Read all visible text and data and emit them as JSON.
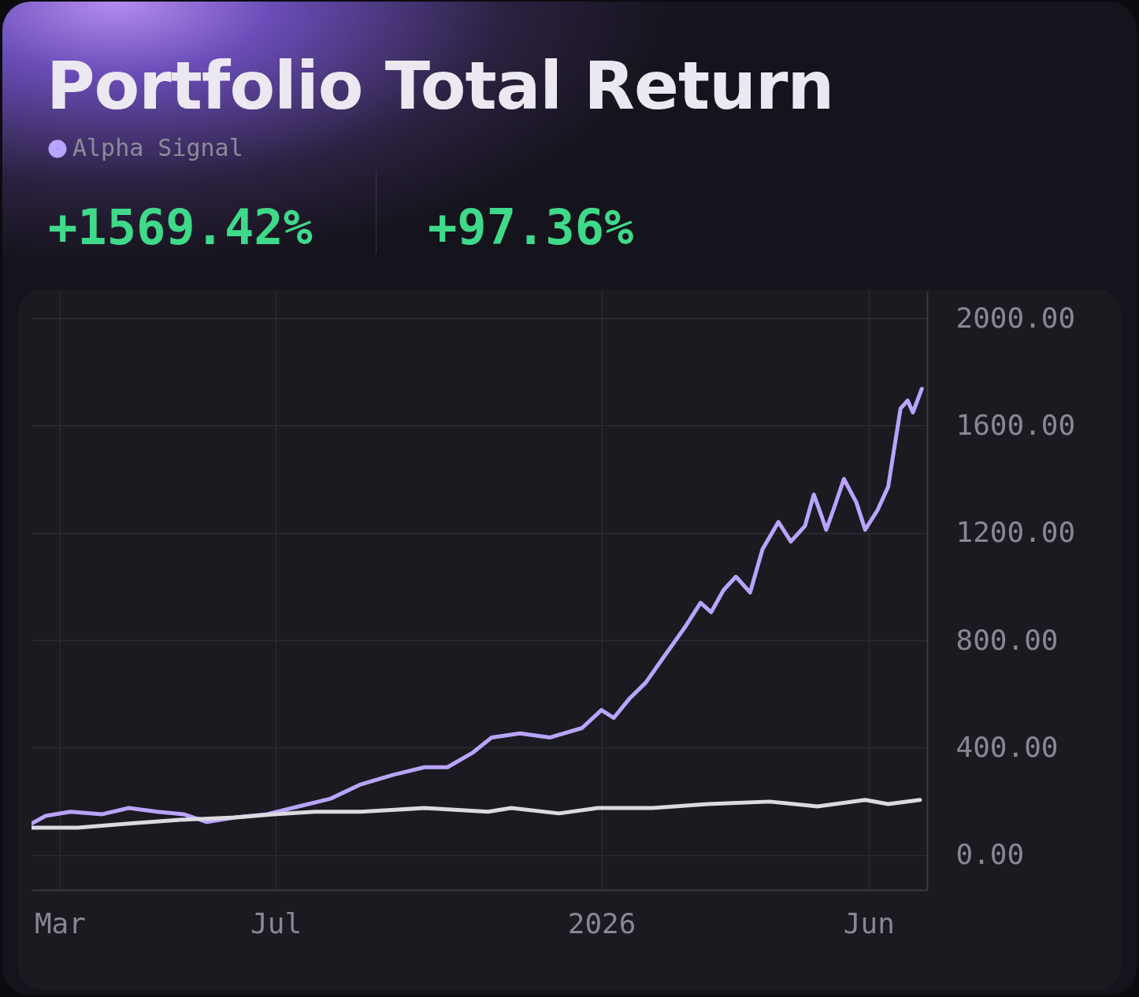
{
  "chart_data": {
    "type": "line",
    "title": "Portfolio Total Return",
    "annotations": [
      "+1569.42%",
      "+97.36%"
    ],
    "series": [
      {
        "name": "Alpha Signal",
        "color": "#b9a4ff",
        "x": [
          "2025-02-13",
          "2025-02-21",
          "2025-03-07",
          "2025-03-25",
          "2025-04-09",
          "2025-04-25",
          "2025-05-10",
          "2025-05-23",
          "2025-06-08",
          "2025-06-26",
          "2025-07-14",
          "2025-08-01",
          "2025-08-18",
          "2025-09-05",
          "2025-09-23",
          "2025-10-06",
          "2025-10-20",
          "2025-10-31",
          "2025-11-16",
          "2025-12-03",
          "2025-12-21",
          "2026-01-01",
          "2026-01-08",
          "2026-01-17",
          "2026-01-26",
          "2026-02-06",
          "2026-02-17",
          "2026-02-26",
          "2026-03-04",
          "2026-03-11",
          "2026-03-18",
          "2026-03-26",
          "2026-04-02",
          "2026-04-11",
          "2026-04-18",
          "2026-04-26",
          "2026-05-01",
          "2026-05-05",
          "2026-05-08",
          "2026-05-12",
          "2026-05-18",
          "2026-05-25",
          "2026-05-30",
          "2026-06-06",
          "2026-06-12",
          "2026-06-19",
          "2026-06-23",
          "2026-06-26",
          "2026-07-01"
        ],
        "values": [
          117,
          146,
          161,
          152,
          175,
          161,
          152,
          123,
          140,
          152,
          181,
          210,
          263,
          298,
          327,
          327,
          380,
          438,
          453,
          438,
          473,
          540,
          511,
          584,
          642,
          745,
          847,
          940,
          905,
          987,
          1037,
          978,
          1139,
          1241,
          1168,
          1226,
          1343,
          1270,
          1212,
          1285,
          1401,
          1314,
          1212,
          1285,
          1372,
          1664,
          1693,
          1649,
          1737
        ]
      },
      {
        "color": "#dcdae0",
        "x": [
          "2025-02-13",
          "2025-03-11",
          "2025-04-09",
          "2025-05-08",
          "2025-06-08",
          "2025-06-30",
          "2025-07-23",
          "2025-08-18",
          "2025-09-23",
          "2025-10-29",
          "2025-11-11",
          "2025-12-08",
          "2025-12-30",
          "2026-01-30",
          "2026-03-02",
          "2026-04-06",
          "2026-05-03",
          "2026-05-30",
          "2026-06-12",
          "2026-06-30"
        ],
        "values": [
          102,
          102,
          117,
          131,
          140,
          152,
          161,
          161,
          175,
          161,
          175,
          155,
          175,
          175,
          190,
          199,
          181,
          205,
          190,
          205
        ]
      }
    ],
    "xlim": [
      "2025-02-13",
      "2026-07-04"
    ],
    "xticks": [
      {
        "value": "2025-03-01",
        "label": "Mar"
      },
      {
        "value": "2025-07-01",
        "label": "Jul"
      },
      {
        "value": "2026-01-01",
        "label": "2026"
      },
      {
        "value": "2026-06-01",
        "label": "Jun"
      }
    ],
    "ylim": [
      -130,
      2100
    ],
    "yticks": [
      {
        "value": 0,
        "label": "0.00"
      },
      {
        "value": 400,
        "label": "400.00"
      },
      {
        "value": 800,
        "label": "800.00"
      },
      {
        "value": 1200,
        "label": "1200.00"
      },
      {
        "value": 1600,
        "label": "1600.00"
      },
      {
        "value": 2000,
        "label": "2000.00"
      }
    ],
    "grid": true,
    "legend": "top left",
    "line_style": "solid",
    "marker": "none"
  }
}
